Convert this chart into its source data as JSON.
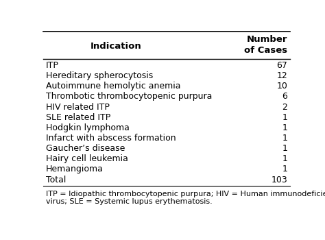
{
  "title_col1": "Indication",
  "title_col2": "Number\nof Cases",
  "rows": [
    [
      "ITP",
      "67"
    ],
    [
      "Hereditary spherocytosis",
      "12"
    ],
    [
      "Autoimmune hemolytic anemia",
      "10"
    ],
    [
      "Thrombotic thrombocytopenic purpura",
      "6"
    ],
    [
      "HIV related ITP",
      "2"
    ],
    [
      "SLE related ITP",
      "1"
    ],
    [
      "Hodgkin lymphoma",
      "1"
    ],
    [
      "Infarct with abscess formation",
      "1"
    ],
    [
      "Gaucher’s disease",
      "1"
    ],
    [
      "Hairy cell leukemia",
      "1"
    ],
    [
      "Hemangioma",
      "1"
    ],
    [
      "Total",
      "103"
    ]
  ],
  "footnote": "ITP = Idiopathic thrombocytopenic purpura; HIV = Human immunodeficiency\nvirus; SLE = Systemic lupus erythematosis.",
  "bg_color": "#ffffff",
  "text_color": "#000000",
  "header_fontsize": 9.5,
  "body_fontsize": 9,
  "footnote_fontsize": 8
}
